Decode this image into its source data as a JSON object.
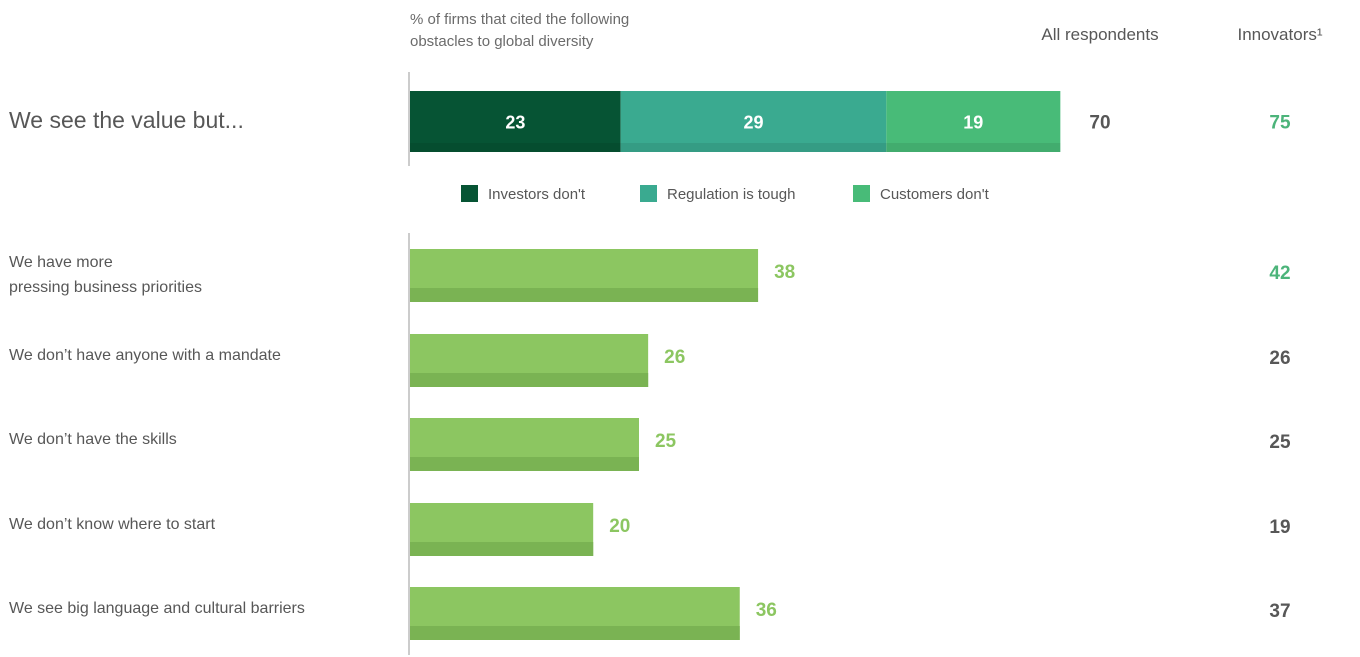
{
  "chart_data": {
    "type": "bar",
    "subtitle": [
      "% of firms that cited the following",
      "obstacles to global diversity"
    ],
    "column_headers": {
      "all_respondents": "All respondents",
      "innovators": "Innovators¹"
    },
    "stacked": {
      "group_label": "We see the value but...",
      "series": [
        {
          "name": "Investors don't",
          "value": 23,
          "color": "#065434"
        },
        {
          "name": "Regulation is tough",
          "value": 29,
          "color": "#3aaa90"
        },
        {
          "name": "Customers don't",
          "value": 19,
          "color": "#48bb78"
        }
      ],
      "all_respondents": 70,
      "innovators": 75,
      "innovators_highlight": true
    },
    "categories": [
      "We have more pressing business priorities",
      "We don’t have anyone with a mandate",
      "We don’t have the skills",
      "We don’t know where to start",
      "We see big language and cultural barriers"
    ],
    "category_lines": [
      [
        "We have more",
        "pressing business priorities"
      ],
      [
        "We don’t have anyone with a mandate"
      ],
      [
        "We don’t have the skills"
      ],
      [
        "We don’t know where to start"
      ],
      [
        "We see big language and cultural barriers"
      ]
    ],
    "values": [
      38,
      26,
      25,
      20,
      36
    ],
    "innovators": [
      42,
      26,
      25,
      19,
      37
    ],
    "innovators_highlight": [
      true,
      false,
      false,
      false,
      false
    ],
    "bar_color": "#8cc661",
    "bar_shadow_color": "#7ab353",
    "value_color": "#8cc661",
    "highlight_color": "#4cb47a",
    "neutral_value_color": "#575757",
    "xlim": [
      0,
      71.4
    ]
  }
}
